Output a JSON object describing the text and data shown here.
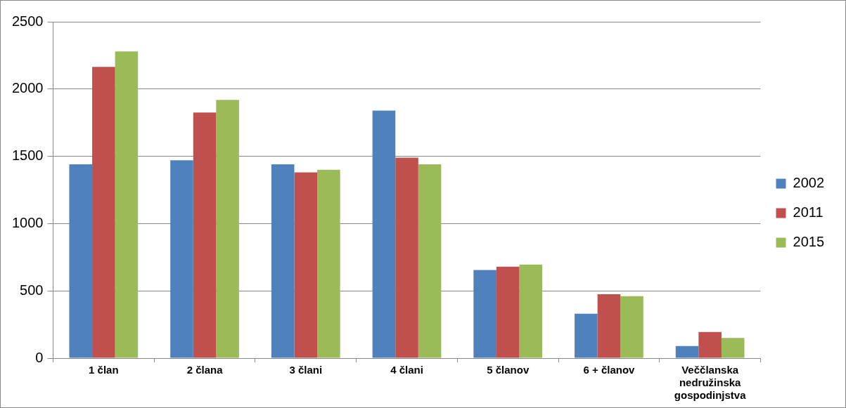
{
  "chart_data": {
    "type": "bar",
    "categories": [
      "1 član",
      "2 člana",
      "3 člani",
      "4 člani",
      "5 članov",
      "6 + članov",
      "Veččlanska nedružinska gospodinjstva"
    ],
    "series": [
      {
        "name": "2002",
        "color": "#4f81bd",
        "values": [
          1440,
          1470,
          1440,
          1840,
          655,
          330,
          90
        ]
      },
      {
        "name": "2011",
        "color": "#c0504d",
        "values": [
          2165,
          1825,
          1380,
          1490,
          680,
          475,
          195
        ]
      },
      {
        "name": "2015",
        "color": "#9bbb59",
        "values": [
          2280,
          1920,
          1400,
          1440,
          695,
          460,
          150
        ]
      }
    ],
    "ylim": [
      0,
      2500
    ],
    "yticks": [
      0,
      500,
      1000,
      1500,
      2000,
      2500
    ],
    "grid": "y",
    "legend": "right"
  }
}
